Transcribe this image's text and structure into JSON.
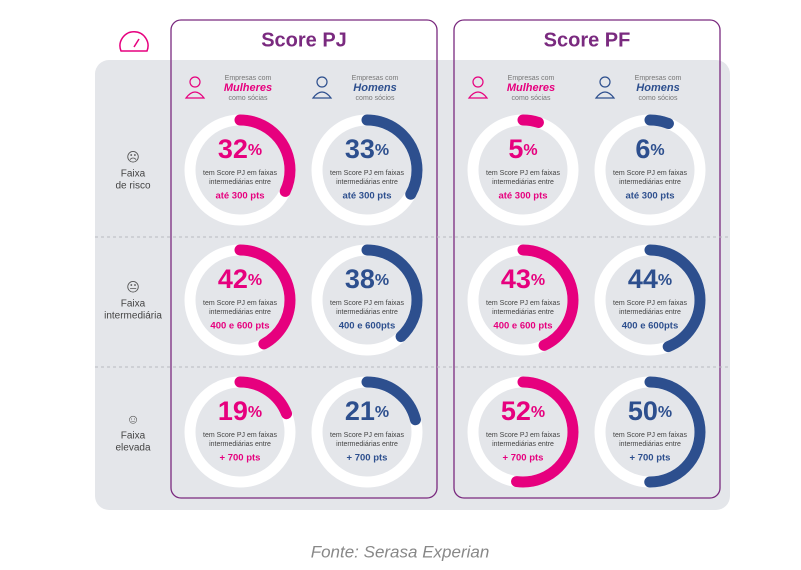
{
  "groups": [
    {
      "title": "Score PJ",
      "columns": [
        {
          "top": "Empresas com",
          "main": "Mulheres",
          "bottom": "como sócias",
          "color": "#e6007e"
        },
        {
          "top": "Empresas com",
          "main": "Homens",
          "bottom": "como sócios",
          "color": "#2d4f8e"
        }
      ]
    },
    {
      "title": "Score PF",
      "columns": [
        {
          "top": "Empresas com",
          "main": "Mulheres",
          "bottom": "como sócias",
          "color": "#e6007e"
        },
        {
          "top": "Empresas com",
          "main": "Homens",
          "bottom": "como sócios",
          "color": "#2d4f8e"
        }
      ]
    }
  ],
  "rows": [
    {
      "lines": [
        "Faixa",
        "de risco"
      ],
      "icon": "☹"
    },
    {
      "lines": [
        "Faixa",
        "intermediária"
      ],
      "icon": "😐"
    },
    {
      "lines": [
        "Faixa",
        "elevada"
      ],
      "icon": "☺"
    }
  ],
  "unit": "%",
  "description_lines": [
    "tem Score PJ em faixas",
    "intermediárias entre"
  ],
  "cells": [
    [
      {
        "value": 32,
        "range": "até 300 pts"
      },
      {
        "value": 33,
        "range": "até 300 pts"
      },
      {
        "value": 5,
        "range": "até 300 pts"
      },
      {
        "value": 6,
        "range": "até 300 pts"
      }
    ],
    [
      {
        "value": 42,
        "range": "400 e 600 pts"
      },
      {
        "value": 38,
        "range": "400 e 600pts"
      },
      {
        "value": 43,
        "range": "400 e 600 pts"
      },
      {
        "value": 44,
        "range": "400 e 600pts"
      }
    ],
    [
      {
        "value": 19,
        "range": "+ 700 pts"
      },
      {
        "value": 21,
        "range": "+ 700 pts"
      },
      {
        "value": 52,
        "range": "+ 700 pts"
      },
      {
        "value": 50,
        "range": "+ 700 pts"
      }
    ]
  ],
  "source": "Fonte: Serasa Experian"
}
